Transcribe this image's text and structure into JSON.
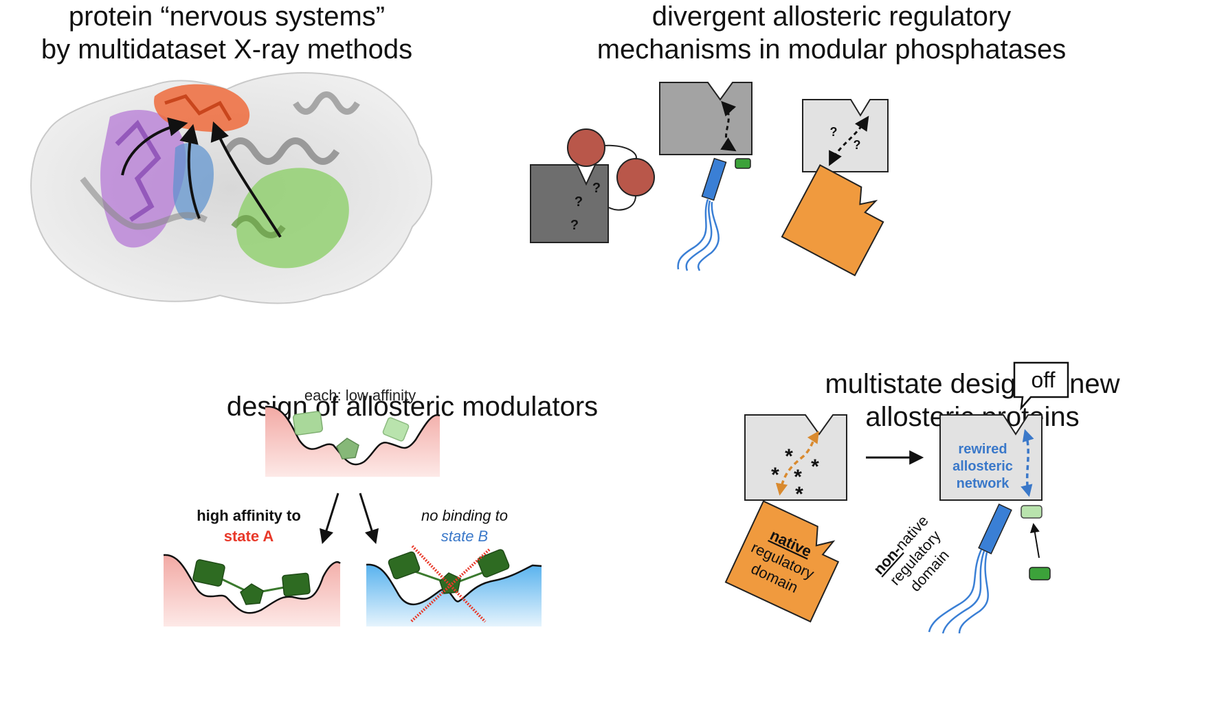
{
  "panels": {
    "top_left": {
      "title_line1": "protein “nervous systems”",
      "title_line2": "by multidataset X-ray methods"
    },
    "top_right": {
      "title_line1": "divergent allosteric regulatory",
      "title_line2": "mechanisms in modular phosphatases",
      "question_mark": "?"
    },
    "bottom_left": {
      "title": "design of allosteric modulators",
      "low_affinity_label": "each: low affinity",
      "high_affinity_line1": "high affinity to",
      "high_affinity_line2": "state A",
      "no_binding_line1": "no binding to",
      "no_binding_line2": "state B"
    },
    "bottom_right": {
      "title_line1": "multistate design of new",
      "title_line2": "allosteric proteins",
      "off_label": "off",
      "asterisk": "*",
      "native_line1": "native",
      "native_line2": "regulatory",
      "native_line3": "domain",
      "rewired_line1": "rewired",
      "rewired_line2": "allosteric",
      "rewired_line3": "network",
      "nonnative_prefix": "non-",
      "nonnative_suffix": "native",
      "nonnative_line2": "regulatory",
      "nonnative_line3": "domain"
    }
  },
  "colors": {
    "orange": "#f09a3e",
    "blue": "#3a7fd5",
    "red_label": "#e8392a",
    "blue_label": "#3a78c9",
    "dark_green": "#2e6b22",
    "light_green": "#a9d89a",
    "pink_fill": "#f4b6b2",
    "blue_fill": "#5bb4ef",
    "grey_dark": "#6e6e6e",
    "grey_mid": "#a3a3a3",
    "grey_light": "#e2e2e2",
    "brick": "#b9574a"
  }
}
